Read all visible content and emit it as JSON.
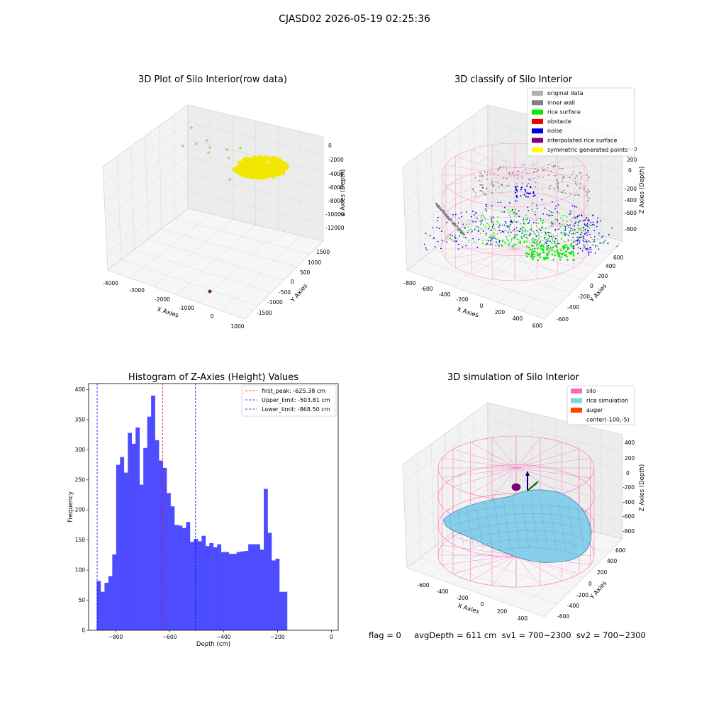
{
  "suptitle": "CJASD02 2026-05-19 02:25:36",
  "status_text": "flag = 0     avgDepth = 611 cm  sv1 = 700~2300  sv2 = 700~2300",
  "chart_data": [
    {
      "type": "scatter3d",
      "title": "3D Plot of Silo Interior(row data)",
      "xlabel": "X Axies",
      "ylabel": "Y Axies",
      "zlabel": "Z Axies (Depth)",
      "x_ticks": [
        "-4000",
        "-3000",
        "-2000",
        "-1000",
        "0",
        "1000"
      ],
      "y_ticks": [
        "-1500",
        "-1000",
        "-500",
        "0",
        "500",
        "1000",
        "1500"
      ],
      "z_ticks": [
        "0",
        "-2000",
        "-4000",
        "-6000",
        "-8000",
        "-10000",
        "-12000"
      ],
      "colors": {
        "main_points": "#f0e800",
        "sparse_points": "#9bd67a",
        "outlier": "#6a1a6a"
      }
    },
    {
      "type": "scatter3d",
      "title": "3D classify of Silo Interior",
      "xlabel": "X Axies",
      "ylabel": "Y Axies",
      "zlabel": "Z Axies (Depth)",
      "x_ticks": [
        "-800",
        "-600",
        "-400",
        "-200",
        "0",
        "200",
        "400",
        "600"
      ],
      "y_ticks": [
        "-600",
        "-400",
        "-200",
        "0",
        "200",
        "400",
        "600"
      ],
      "z_ticks": [
        "400",
        "200",
        "0",
        "-200",
        "-400",
        "-600",
        "-800"
      ],
      "legend": [
        {
          "label": "original data",
          "color": "#b0b0b0"
        },
        {
          "label": "inner wall",
          "color": "#808080"
        },
        {
          "label": "rice surface",
          "color": "#00ee00"
        },
        {
          "label": "obstacle",
          "color": "#ee0000"
        },
        {
          "label": "noise",
          "color": "#0000dd"
        },
        {
          "label": "interpolated rice surface",
          "color": "#800080"
        },
        {
          "label": "symmetric generated points",
          "color": "#ffff00"
        }
      ],
      "legend_position": "top-right",
      "colors": {
        "silo_wire": "#ff9ad0"
      }
    },
    {
      "type": "bar",
      "title": "Histogram of Z-Axies (Height) Values",
      "xlabel": "Depth (cm)",
      "ylabel": "Frequency",
      "bin_start": -870,
      "bin_width": 14.4,
      "values": [
        82,
        64,
        79,
        90,
        126,
        275,
        288,
        262,
        328,
        310,
        337,
        242,
        303,
        355,
        390,
        316,
        282,
        270,
        228,
        206,
        175,
        174,
        170,
        180,
        147,
        152,
        148,
        157,
        140,
        145,
        138,
        143,
        130,
        130,
        127,
        127,
        130,
        131,
        132,
        143,
        143,
        143,
        134,
        235,
        162,
        116,
        119,
        64,
        64
      ],
      "xlim": [
        -900,
        25
      ],
      "ylim": [
        0,
        410
      ],
      "x_ticks": [
        -800,
        -600,
        -400,
        -200,
        0
      ],
      "y_ticks": [
        0,
        50,
        100,
        150,
        200,
        250,
        300,
        350,
        400
      ],
      "bar_color": "#4d4dff",
      "lines": [
        {
          "label": "first_peak: -625.38 cm",
          "x": -625.38,
          "color": "#ff0000"
        },
        {
          "label": "Upper_limit: -503.81 cm",
          "x": -503.81,
          "color": "#0000ff"
        },
        {
          "label": "Lower_limit: -868.50 cm",
          "x": -868.5,
          "color": "#0000ff"
        }
      ],
      "legend_position": "top-right"
    },
    {
      "type": "surface3d",
      "title": "3D simulation of Silo Interior",
      "xlabel": "X Axies",
      "ylabel": "Y Axies",
      "zlabel": "Z Axies (Depth)",
      "x_ticks": [
        "-600",
        "-400",
        "-200",
        "0",
        "200",
        "400"
      ],
      "y_ticks": [
        "-600",
        "-400",
        "-200",
        "0",
        "200",
        "400",
        "600"
      ],
      "z_ticks": [
        "400",
        "200",
        "0",
        "-200",
        "-400",
        "-600",
        "-800"
      ],
      "legend": [
        {
          "label": "silo",
          "color": "#ff69b4"
        },
        {
          "label": "rice simulation",
          "color": "#87ceeb"
        },
        {
          "label": "auger",
          "color": "#ff4500"
        },
        {
          "label": "center(-100,-5)",
          "color": ""
        }
      ],
      "legend_position": "top-right",
      "colors": {
        "auger_marker": "#800080",
        "axis_x": "#008000",
        "axis_y": "#000080"
      }
    }
  ]
}
